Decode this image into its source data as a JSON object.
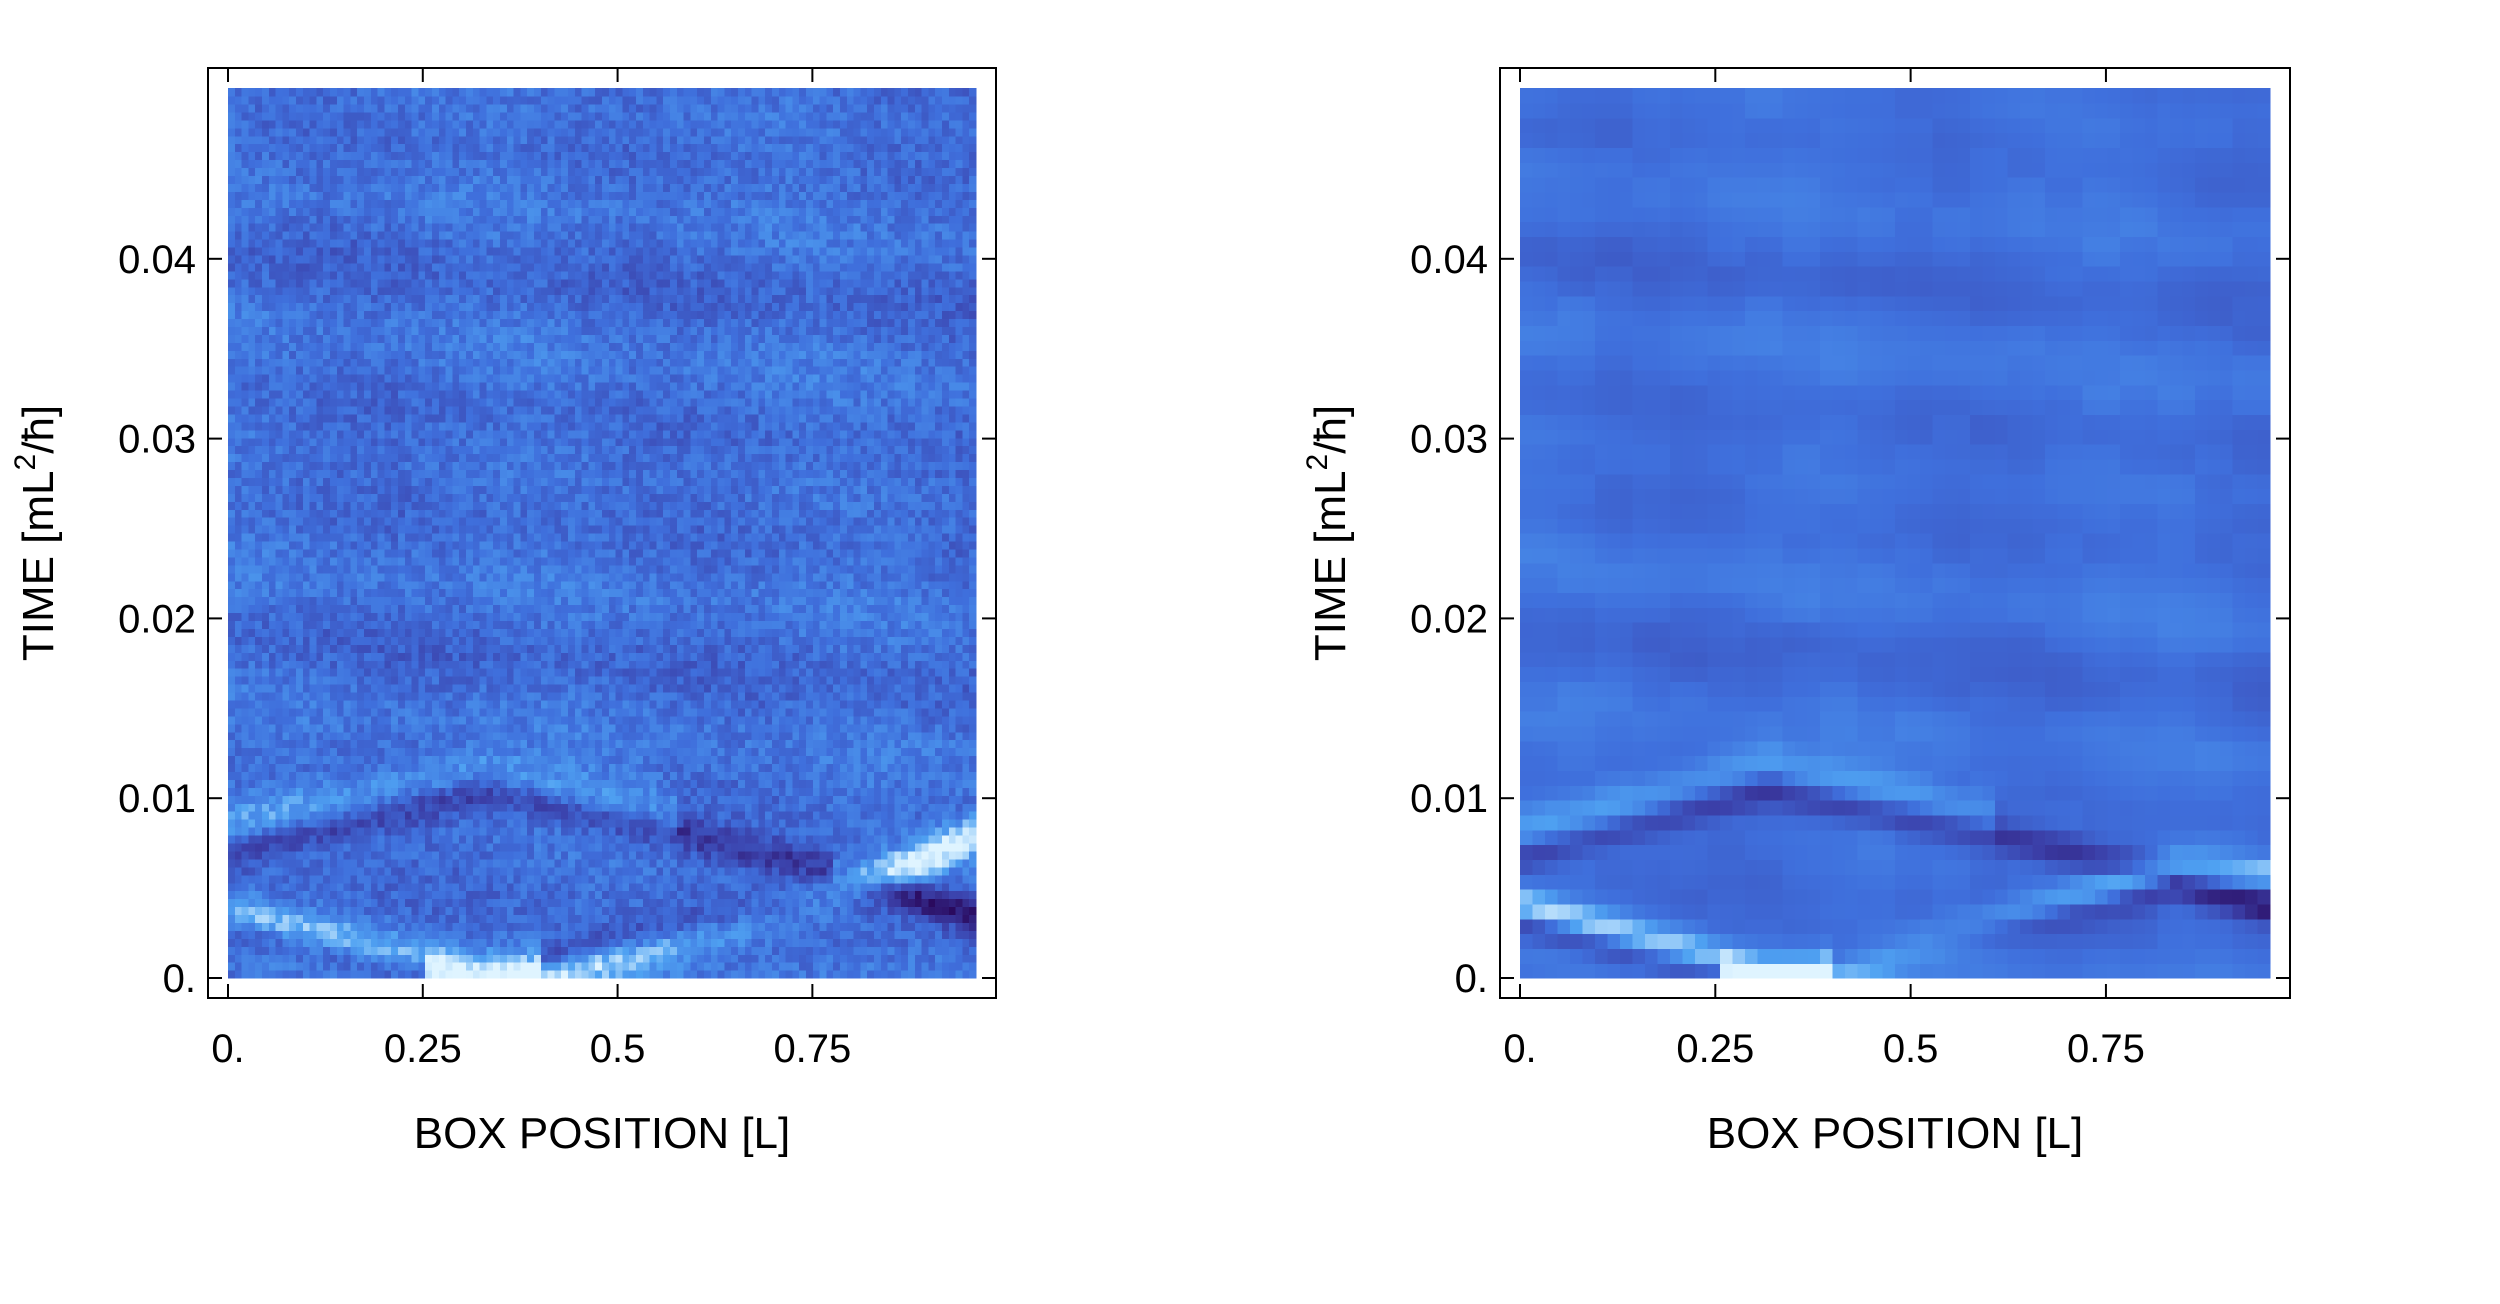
{
  "figure": {
    "background": "#ffffff",
    "colormap": [
      "#2a0a5e",
      "#3b3fa8",
      "#3f6fdc",
      "#4fa2f2",
      "#dff4ff"
    ]
  },
  "chart_data": [
    {
      "type": "heatmap",
      "panel": "left",
      "texture": "noisy",
      "title": "",
      "xlabel": "BOX POSITION [L]",
      "ylabel": "TIME [mL²/ħ]",
      "ylabel_parts": {
        "prefix": "TIME [mL",
        "sup": "2",
        "suffix": "/ħ]"
      },
      "xlim": [
        0,
        0.96
      ],
      "ylim": [
        0,
        0.0495
      ],
      "xticks": [
        0,
        0.25,
        0.5,
        0.75
      ],
      "xtick_labels": [
        "0.",
        "0.25",
        "0.5",
        "0.75"
      ],
      "yticks": [
        0,
        0.01,
        0.02,
        0.03,
        0.04
      ],
      "ytick_labels": [
        "0.",
        "0.01",
        "0.02",
        "0.03",
        "0.04"
      ],
      "grid": false,
      "bright_ridges": [
        {
          "points": [
            [
              0.0,
              0.0035
            ],
            [
              0.31,
              0.0002
            ],
            [
              0.4,
              0.0002
            ],
            [
              0.78,
              0.0045
            ],
            [
              0.96,
              0.008
            ]
          ]
        },
        {
          "points": [
            [
              0.0,
              0.0085
            ],
            [
              0.33,
              0.0115
            ],
            [
              0.58,
              0.009
            ]
          ]
        }
      ],
      "dark_ridges": [
        {
          "points": [
            [
              0.0,
              0.003
            ],
            [
              0.25,
              0.0005
            ]
          ]
        },
        {
          "points": [
            [
              0.4,
              0.001
            ],
            [
              0.84,
              0.005
            ],
            [
              0.96,
              0.0035
            ]
          ]
        },
        {
          "points": [
            [
              0.0,
              0.007
            ],
            [
              0.33,
              0.0105
            ],
            [
              0.78,
              0.006
            ]
          ]
        }
      ]
    },
    {
      "type": "heatmap",
      "panel": "right",
      "texture": "smooth",
      "title": "",
      "xlabel": "BOX POSITION [L]",
      "ylabel": "TIME [mL²/ħ]",
      "ylabel_parts": {
        "prefix": "TIME [mL",
        "sup": "2",
        "suffix": "/ħ]"
      },
      "xlim": [
        0,
        0.96
      ],
      "ylim": [
        0,
        0.0495
      ],
      "xticks": [
        0,
        0.25,
        0.5,
        0.75
      ],
      "xtick_labels": [
        "0.",
        "0.25",
        "0.5",
        "0.75"
      ],
      "yticks": [
        0,
        0.01,
        0.02,
        0.03,
        0.04
      ],
      "ytick_labels": [
        "0.",
        "0.01",
        "0.02",
        "0.03",
        "0.04"
      ],
      "grid": false,
      "bright_ridges": [
        {
          "points": [
            [
              0.0,
              0.004
            ],
            [
              0.31,
              0.0002
            ],
            [
              0.38,
              0.0002
            ],
            [
              0.84,
              0.006
            ],
            [
              0.96,
              0.0062
            ]
          ]
        },
        {
          "points": [
            [
              0.0,
              0.008
            ],
            [
              0.32,
              0.012
            ],
            [
              0.6,
              0.009
            ]
          ]
        }
      ],
      "dark_ridges": [
        {
          "points": [
            [
              0.0,
              0.0032
            ],
            [
              0.25,
              0.0004
            ]
          ]
        },
        {
          "points": [
            [
              0.4,
              0.0008
            ],
            [
              0.84,
              0.0052
            ],
            [
              0.96,
              0.004
            ]
          ]
        },
        {
          "points": [
            [
              0.0,
              0.0068
            ],
            [
              0.32,
              0.0105
            ],
            [
              0.84,
              0.0058
            ],
            [
              0.96,
              0.0068
            ]
          ]
        }
      ]
    }
  ]
}
